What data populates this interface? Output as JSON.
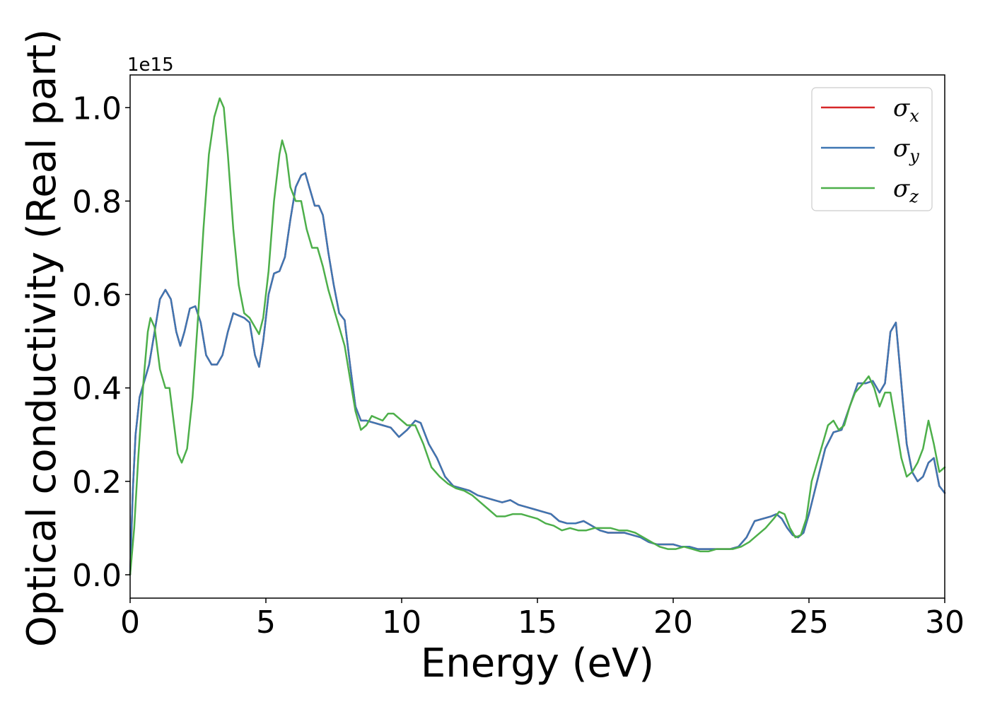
{
  "chart_data": {
    "type": "line",
    "title": "",
    "xlabel": "Energy (eV)",
    "ylabel": "Optical conductivity (Real part)",
    "y_offset_label": "1e15",
    "xlim": [
      0,
      30
    ],
    "ylim": [
      -0.05,
      1.07
    ],
    "grid": false,
    "legend_position": "top-right",
    "xticks": [
      0,
      5,
      10,
      15,
      20,
      25,
      30
    ],
    "xtick_labels": [
      "0",
      "5",
      "10",
      "15",
      "20",
      "25",
      "30"
    ],
    "yticks": [
      0.0,
      0.2,
      0.4,
      0.6,
      0.8,
      1.0
    ],
    "ytick_labels": [
      "0.0",
      "0.2",
      "0.4",
      "0.6",
      "0.8",
      "1.0"
    ],
    "series": [
      {
        "name": "σx",
        "legend_symbol": "σ",
        "legend_sub": "x",
        "color": "#d62728",
        "x": [
          0,
          0.1,
          0.2,
          0.35,
          0.5,
          0.7,
          0.9,
          1.1,
          1.3,
          1.5,
          1.7,
          1.85,
          2.0,
          2.2,
          2.4,
          2.6,
          2.8,
          3.0,
          3.2,
          3.4,
          3.6,
          3.8,
          4.0,
          4.2,
          4.4,
          4.6,
          4.75,
          4.9,
          5.1,
          5.3,
          5.5,
          5.7,
          5.9,
          6.1,
          6.3,
          6.45,
          6.6,
          6.8,
          6.95,
          7.1,
          7.3,
          7.5,
          7.7,
          7.9,
          8.1,
          8.3,
          8.5,
          8.7,
          9.0,
          9.3,
          9.6,
          9.9,
          10.2,
          10.5,
          10.7,
          11.0,
          11.3,
          11.6,
          11.9,
          12.2,
          12.5,
          12.8,
          13.1,
          13.4,
          13.7,
          14.0,
          14.3,
          14.6,
          14.9,
          15.2,
          15.5,
          15.8,
          16.1,
          16.4,
          16.7,
          17.0,
          17.3,
          17.6,
          17.9,
          18.2,
          18.5,
          18.8,
          19.1,
          19.4,
          19.7,
          20.0,
          20.3,
          20.6,
          20.9,
          21.2,
          21.5,
          21.8,
          22.1,
          22.4,
          22.7,
          23.0,
          23.3,
          23.6,
          23.8,
          24.0,
          24.2,
          24.4,
          24.6,
          24.8,
          25.0,
          25.3,
          25.6,
          25.9,
          26.2,
          26.5,
          26.8,
          27.1,
          27.35,
          27.6,
          27.8,
          28.0,
          28.2,
          28.4,
          28.6,
          28.8,
          29.0,
          29.2,
          29.4,
          29.6,
          29.8,
          30.0
        ],
        "y": [
          0.0,
          0.18,
          0.3,
          0.38,
          0.41,
          0.45,
          0.52,
          0.59,
          0.61,
          0.59,
          0.52,
          0.49,
          0.52,
          0.57,
          0.575,
          0.54,
          0.47,
          0.45,
          0.45,
          0.47,
          0.52,
          0.56,
          0.555,
          0.55,
          0.54,
          0.47,
          0.445,
          0.5,
          0.6,
          0.645,
          0.65,
          0.68,
          0.76,
          0.83,
          0.855,
          0.86,
          0.83,
          0.79,
          0.79,
          0.77,
          0.69,
          0.62,
          0.56,
          0.545,
          0.45,
          0.36,
          0.33,
          0.33,
          0.325,
          0.32,
          0.315,
          0.295,
          0.31,
          0.33,
          0.325,
          0.28,
          0.25,
          0.21,
          0.19,
          0.185,
          0.18,
          0.17,
          0.165,
          0.16,
          0.155,
          0.16,
          0.15,
          0.145,
          0.14,
          0.135,
          0.13,
          0.115,
          0.11,
          0.11,
          0.115,
          0.105,
          0.095,
          0.09,
          0.09,
          0.09,
          0.085,
          0.08,
          0.07,
          0.065,
          0.065,
          0.065,
          0.06,
          0.06,
          0.055,
          0.055,
          0.055,
          0.055,
          0.055,
          0.06,
          0.08,
          0.115,
          0.12,
          0.125,
          0.13,
          0.12,
          0.1,
          0.085,
          0.08,
          0.09,
          0.13,
          0.2,
          0.27,
          0.305,
          0.31,
          0.36,
          0.41,
          0.41,
          0.415,
          0.39,
          0.41,
          0.52,
          0.54,
          0.41,
          0.28,
          0.22,
          0.2,
          0.21,
          0.24,
          0.25,
          0.19,
          0.175
        ]
      },
      {
        "name": "σy",
        "legend_symbol": "σ",
        "legend_sub": "y",
        "color": "#3e76b2",
        "x": [
          0,
          0.1,
          0.2,
          0.35,
          0.5,
          0.7,
          0.9,
          1.1,
          1.3,
          1.5,
          1.7,
          1.85,
          2.0,
          2.2,
          2.4,
          2.6,
          2.8,
          3.0,
          3.2,
          3.4,
          3.6,
          3.8,
          4.0,
          4.2,
          4.4,
          4.6,
          4.75,
          4.9,
          5.1,
          5.3,
          5.5,
          5.7,
          5.9,
          6.1,
          6.3,
          6.45,
          6.6,
          6.8,
          6.95,
          7.1,
          7.3,
          7.5,
          7.7,
          7.9,
          8.1,
          8.3,
          8.5,
          8.7,
          9.0,
          9.3,
          9.6,
          9.9,
          10.2,
          10.5,
          10.7,
          11.0,
          11.3,
          11.6,
          11.9,
          12.2,
          12.5,
          12.8,
          13.1,
          13.4,
          13.7,
          14.0,
          14.3,
          14.6,
          14.9,
          15.2,
          15.5,
          15.8,
          16.1,
          16.4,
          16.7,
          17.0,
          17.3,
          17.6,
          17.9,
          18.2,
          18.5,
          18.8,
          19.1,
          19.4,
          19.7,
          20.0,
          20.3,
          20.6,
          20.9,
          21.2,
          21.5,
          21.8,
          22.1,
          22.4,
          22.7,
          23.0,
          23.3,
          23.6,
          23.8,
          24.0,
          24.2,
          24.4,
          24.6,
          24.8,
          25.0,
          25.3,
          25.6,
          25.9,
          26.2,
          26.5,
          26.8,
          27.1,
          27.35,
          27.6,
          27.8,
          28.0,
          28.2,
          28.4,
          28.6,
          28.8,
          29.0,
          29.2,
          29.4,
          29.6,
          29.8,
          30.0
        ],
        "y": [
          0.0,
          0.18,
          0.3,
          0.38,
          0.41,
          0.45,
          0.52,
          0.59,
          0.61,
          0.59,
          0.52,
          0.49,
          0.52,
          0.57,
          0.575,
          0.54,
          0.47,
          0.45,
          0.45,
          0.47,
          0.52,
          0.56,
          0.555,
          0.55,
          0.54,
          0.47,
          0.445,
          0.5,
          0.6,
          0.645,
          0.65,
          0.68,
          0.76,
          0.83,
          0.855,
          0.86,
          0.83,
          0.79,
          0.79,
          0.77,
          0.69,
          0.62,
          0.56,
          0.545,
          0.45,
          0.36,
          0.33,
          0.33,
          0.325,
          0.32,
          0.315,
          0.295,
          0.31,
          0.33,
          0.325,
          0.28,
          0.25,
          0.21,
          0.19,
          0.185,
          0.18,
          0.17,
          0.165,
          0.16,
          0.155,
          0.16,
          0.15,
          0.145,
          0.14,
          0.135,
          0.13,
          0.115,
          0.11,
          0.11,
          0.115,
          0.105,
          0.095,
          0.09,
          0.09,
          0.09,
          0.085,
          0.08,
          0.07,
          0.065,
          0.065,
          0.065,
          0.06,
          0.06,
          0.055,
          0.055,
          0.055,
          0.055,
          0.055,
          0.06,
          0.08,
          0.115,
          0.12,
          0.125,
          0.13,
          0.12,
          0.1,
          0.085,
          0.08,
          0.09,
          0.13,
          0.2,
          0.27,
          0.305,
          0.31,
          0.36,
          0.41,
          0.41,
          0.415,
          0.39,
          0.41,
          0.52,
          0.54,
          0.41,
          0.28,
          0.22,
          0.2,
          0.21,
          0.24,
          0.25,
          0.19,
          0.175
        ]
      },
      {
        "name": "σz",
        "legend_symbol": "σ",
        "legend_sub": "z",
        "color": "#4daf4a",
        "x": [
          0,
          0.15,
          0.3,
          0.5,
          0.65,
          0.75,
          0.9,
          1.1,
          1.3,
          1.45,
          1.6,
          1.75,
          1.9,
          2.1,
          2.3,
          2.5,
          2.7,
          2.9,
          3.1,
          3.3,
          3.45,
          3.6,
          3.8,
          4.0,
          4.2,
          4.4,
          4.6,
          4.75,
          4.9,
          5.1,
          5.3,
          5.5,
          5.6,
          5.75,
          5.9,
          6.1,
          6.3,
          6.5,
          6.7,
          6.9,
          7.1,
          7.3,
          7.5,
          7.7,
          7.9,
          8.1,
          8.3,
          8.5,
          8.7,
          8.9,
          9.1,
          9.3,
          9.5,
          9.7,
          9.9,
          10.2,
          10.5,
          10.8,
          11.1,
          11.4,
          11.7,
          12.0,
          12.3,
          12.6,
          12.9,
          13.2,
          13.5,
          13.8,
          14.1,
          14.4,
          14.7,
          15.0,
          15.3,
          15.6,
          15.9,
          16.2,
          16.5,
          16.8,
          17.1,
          17.4,
          17.7,
          18.0,
          18.3,
          18.6,
          18.9,
          19.2,
          19.5,
          19.8,
          20.1,
          20.4,
          20.7,
          21.0,
          21.3,
          21.6,
          21.9,
          22.2,
          22.5,
          22.8,
          23.1,
          23.4,
          23.7,
          23.9,
          24.1,
          24.3,
          24.5,
          24.7,
          24.9,
          25.1,
          25.4,
          25.7,
          25.9,
          26.1,
          26.3,
          26.5,
          26.7,
          27.0,
          27.2,
          27.4,
          27.6,
          27.8,
          28.0,
          28.2,
          28.4,
          28.6,
          28.8,
          29.0,
          29.2,
          29.4,
          29.6,
          29.8,
          30.0
        ],
        "y": [
          0.0,
          0.1,
          0.25,
          0.42,
          0.52,
          0.55,
          0.53,
          0.44,
          0.4,
          0.4,
          0.33,
          0.26,
          0.24,
          0.27,
          0.38,
          0.55,
          0.74,
          0.9,
          0.98,
          1.02,
          1.0,
          0.9,
          0.74,
          0.62,
          0.56,
          0.55,
          0.53,
          0.515,
          0.55,
          0.65,
          0.8,
          0.9,
          0.93,
          0.9,
          0.83,
          0.8,
          0.8,
          0.74,
          0.7,
          0.7,
          0.66,
          0.61,
          0.57,
          0.53,
          0.49,
          0.42,
          0.35,
          0.31,
          0.32,
          0.34,
          0.335,
          0.33,
          0.345,
          0.345,
          0.335,
          0.32,
          0.32,
          0.28,
          0.23,
          0.21,
          0.195,
          0.185,
          0.18,
          0.17,
          0.155,
          0.14,
          0.125,
          0.125,
          0.13,
          0.13,
          0.125,
          0.12,
          0.11,
          0.105,
          0.095,
          0.1,
          0.095,
          0.095,
          0.1,
          0.1,
          0.1,
          0.095,
          0.095,
          0.09,
          0.08,
          0.07,
          0.06,
          0.055,
          0.055,
          0.06,
          0.055,
          0.05,
          0.05,
          0.055,
          0.055,
          0.055,
          0.06,
          0.07,
          0.085,
          0.1,
          0.12,
          0.135,
          0.13,
          0.1,
          0.08,
          0.085,
          0.12,
          0.2,
          0.26,
          0.32,
          0.33,
          0.31,
          0.32,
          0.36,
          0.39,
          0.41,
          0.425,
          0.4,
          0.36,
          0.39,
          0.39,
          0.32,
          0.25,
          0.21,
          0.22,
          0.24,
          0.27,
          0.33,
          0.28,
          0.22,
          0.23
        ]
      }
    ]
  }
}
